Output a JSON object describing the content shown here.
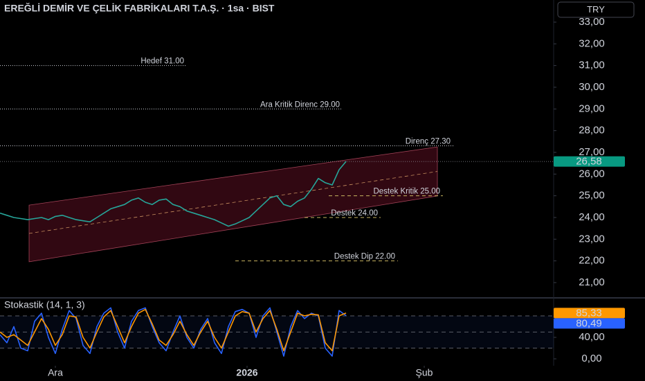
{
  "title": "EREĞLİ DEMİR VE ÇELİK FABRİKALARI T.A.Ş. · 1sa · BIST",
  "currency": "TRY",
  "chart_data": [
    {
      "type": "line",
      "x": [
        0,
        10,
        20,
        30,
        40,
        50,
        60,
        70,
        80,
        90,
        100,
        110,
        120,
        130,
        140,
        150,
        160,
        170,
        180,
        190,
        200,
        210,
        220,
        230,
        240,
        250,
        260,
        270,
        280,
        290,
        300,
        310,
        320,
        330,
        340,
        350,
        360,
        370,
        380,
        390,
        400,
        410,
        420,
        430,
        440,
        450,
        460,
        470,
        480,
        490,
        500
      ],
      "values": [
        24.2,
        24.1,
        24.0,
        23.95,
        23.9,
        23.95,
        24.0,
        23.9,
        24.05,
        24.1,
        24.0,
        23.9,
        23.85,
        23.8,
        24.0,
        24.2,
        24.4,
        24.5,
        24.6,
        24.8,
        24.9,
        24.7,
        24.6,
        24.8,
        24.85,
        24.6,
        24.5,
        24.3,
        24.2,
        24.1,
        24.0,
        23.9,
        23.75,
        23.6,
        23.7,
        23.85,
        24.0,
        24.3,
        24.6,
        24.9,
        25.0,
        24.6,
        24.5,
        24.75,
        24.9,
        25.3,
        25.8,
        25.6,
        25.5,
        26.2,
        26.58
      ],
      "color": "#26a69a",
      "xlim": [
        0,
        800
      ],
      "ylim": [
        20.36,
        34.02
      ],
      "yticks": [
        {
          "value": 21,
          "label": "21,00"
        },
        {
          "value": 22,
          "label": "22,00"
        },
        {
          "value": 23,
          "label": "23,00"
        },
        {
          "value": 24,
          "label": "24,00"
        },
        {
          "value": 25,
          "label": "25,00"
        },
        {
          "value": 26,
          "label": "26,00"
        },
        {
          "value": 27,
          "label": "27,00"
        },
        {
          "value": 28,
          "label": "28,00"
        },
        {
          "value": 29,
          "label": "29,00"
        },
        {
          "value": 30,
          "label": "30,00"
        },
        {
          "value": 31,
          "label": "31,00"
        },
        {
          "value": 32,
          "label": "32,00"
        },
        {
          "value": 33,
          "label": "33,00"
        }
      ],
      "last_price": {
        "value": 26.58,
        "label": "26,58",
        "color": "#089981"
      },
      "levels": [
        {
          "label": "Hedef 31.00",
          "value": 31,
          "x": [
            0,
            270
          ],
          "style": "dotted",
          "color": "#d1d4dc"
        },
        {
          "label": "Ara Kritik Direnc 29.00",
          "value": 29,
          "x": [
            0,
            495
          ],
          "style": "dotted",
          "color": "#d1d4dc"
        },
        {
          "label": "Direnç 27.30",
          "value": 27.3,
          "x": [
            0,
            655
          ],
          "style": "dotted",
          "color": "#d1d4dc"
        },
        {
          "label": "Destek Kritik 25.00",
          "value": 25,
          "x": [
            475,
            640
          ],
          "style": "dashed",
          "color": "#c8b560"
        },
        {
          "label": "Destek 24.00",
          "value": 24,
          "x": [
            440,
            550
          ],
          "style": "dashed",
          "color": "#c8b560"
        },
        {
          "label": "Destek Dip 22.00",
          "value": 22,
          "x": [
            340,
            575
          ],
          "style": "dashed",
          "color": "#c8b560"
        }
      ],
      "channel": {
        "x": [
          42,
          632
        ],
        "upper": [
          24.57,
          27.25
        ],
        "lower": [
          21.96,
          24.99
        ],
        "color": "#e0607a"
      }
    },
    {
      "type": "line",
      "title": "Stokastik (14, 1, 3)",
      "x": [
        0,
        10,
        20,
        30,
        40,
        50,
        60,
        70,
        80,
        90,
        100,
        110,
        120,
        130,
        140,
        150,
        160,
        170,
        180,
        190,
        200,
        210,
        220,
        230,
        240,
        250,
        260,
        270,
        280,
        290,
        300,
        310,
        320,
        330,
        340,
        350,
        360,
        370,
        380,
        390,
        400,
        410,
        420,
        430,
        440,
        450,
        460,
        470,
        480,
        490,
        500
      ],
      "series": [
        {
          "color": "#2962ff",
          "values": [
            45,
            30,
            60,
            20,
            15,
            70,
            85,
            40,
            10,
            55,
            90,
            75,
            25,
            10,
            60,
            85,
            95,
            50,
            20,
            70,
            90,
            95,
            60,
            30,
            15,
            50,
            80,
            40,
            20,
            55,
            75,
            30,
            10,
            60,
            88,
            92,
            85,
            40,
            80,
            95,
            50,
            5,
            60,
            90,
            75,
            85,
            80,
            20,
            5,
            90,
            80.49
          ],
          "last": {
            "value": 80.49,
            "label": "80,49"
          }
        },
        {
          "color": "#ff9800",
          "values": [
            50,
            40,
            45,
            35,
            25,
            50,
            75,
            55,
            25,
            45,
            80,
            78,
            40,
            20,
            50,
            78,
            90,
            60,
            30,
            60,
            85,
            92,
            65,
            35,
            25,
            45,
            70,
            45,
            25,
            50,
            70,
            40,
            20,
            50,
            80,
            88,
            85,
            50,
            75,
            90,
            55,
            15,
            50,
            85,
            80,
            83,
            82,
            30,
            15,
            80,
            85.33
          ],
          "last": {
            "value": 85.33,
            "label": "85,33"
          }
        }
      ],
      "xlim": [
        0,
        800
      ],
      "ylim": [
        -12.9,
        111
      ],
      "yticks": [
        {
          "value": 0,
          "label": "0,00"
        },
        {
          "value": 40,
          "label": "40,00"
        }
      ],
      "bands": [
        20,
        50,
        80
      ],
      "xticks": [
        {
          "value": 80,
          "label": "Ara"
        },
        {
          "value": 357,
          "label": "2026"
        },
        {
          "value": 613,
          "label": "Şub"
        }
      ]
    }
  ]
}
